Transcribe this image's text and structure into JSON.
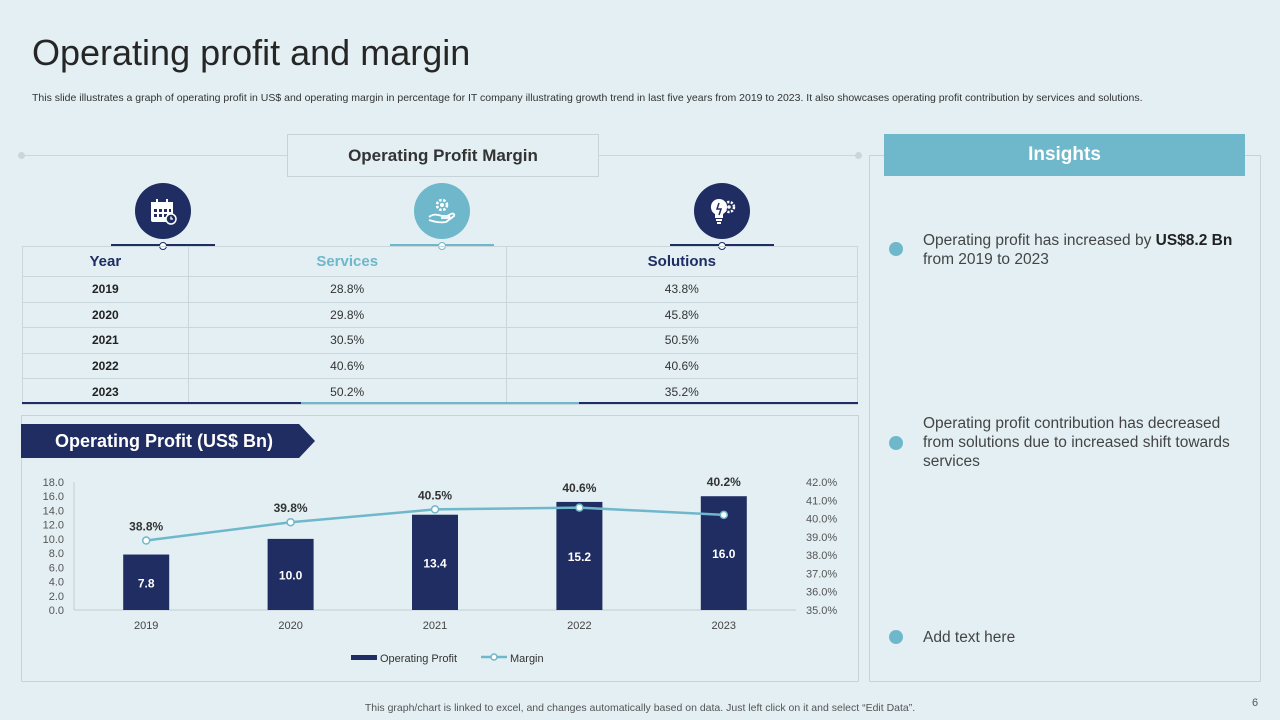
{
  "title": "Operating profit and margin",
  "subtitle": "This slide illustrates a graph of operating profit in US$ and operating margin in percentage for IT company illustrating growth trend in last five years from 2019 to 2023. It also showcases operating profit contribution by services and solutions.",
  "margin_section": {
    "header": "Operating Profit Margin",
    "columns": [
      "Year",
      "Services",
      "Solutions"
    ],
    "rows": [
      {
        "year": "2019",
        "services": "28.8%",
        "solutions": "43.8%"
      },
      {
        "year": "2020",
        "services": "29.8%",
        "solutions": "45.8%"
      },
      {
        "year": "2021",
        "services": "30.5%",
        "solutions": "50.5%"
      },
      {
        "year": "2022",
        "services": "40.6%",
        "solutions": "40.6%"
      },
      {
        "year": "2023",
        "services": "50.2%",
        "solutions": "35.2%"
      }
    ],
    "icons": [
      "calendar-icon",
      "service-hand-gear-icon",
      "lightbulb-gear-icon"
    ]
  },
  "chart_banner": "Operating Profit (US$ Bn)",
  "chart_data": {
    "type": "bar",
    "title": "Operating Profit (US$ Bn)",
    "categories": [
      "2019",
      "2020",
      "2021",
      "2022",
      "2023"
    ],
    "series": [
      {
        "name": "Operating Profit",
        "type": "bar",
        "axis": "left",
        "values": [
          7.8,
          10.0,
          13.4,
          15.2,
          16.0
        ],
        "labels": [
          "7.8",
          "10.0",
          "13.4",
          "15.2",
          "16.0"
        ]
      },
      {
        "name": "Margin",
        "type": "line",
        "axis": "right",
        "values": [
          38.8,
          39.8,
          40.5,
          40.6,
          40.2
        ],
        "labels": [
          "38.8%",
          "39.8%",
          "40.5%",
          "40.6%",
          "40.2%"
        ]
      }
    ],
    "ylim_left": [
      0,
      18
    ],
    "ylim_right": [
      35,
      42
    ],
    "yticks_left": [
      "0.0",
      "2.0",
      "4.0",
      "6.0",
      "8.0",
      "10.0",
      "12.0",
      "14.0",
      "16.0",
      "18.0"
    ],
    "yticks_right": [
      "35.0%",
      "36.0%",
      "37.0%",
      "38.0%",
      "39.0%",
      "40.0%",
      "41.0%",
      "42.0%"
    ],
    "legend": [
      "Operating Profit",
      "Margin"
    ],
    "legend_position": "bottom",
    "grid": false
  },
  "insights": {
    "header": "Insights",
    "items": [
      {
        "text_before": "Operating profit has increased by ",
        "bold": "US$8.2 Bn",
        "text_after": " from 2019 to 2023"
      },
      {
        "text": "Operating profit contribution has decreased from solutions due to increased shift towards services"
      },
      {
        "text": "Add text here"
      }
    ]
  },
  "footer": "This graph/chart is linked to excel,  and changes automatically based on data. Just left click on it and select “Edit Data”.",
  "page_number": "6",
  "colors": {
    "navy": "#1f2d62",
    "teal": "#6fb8cb",
    "background": "#e3eff3"
  }
}
